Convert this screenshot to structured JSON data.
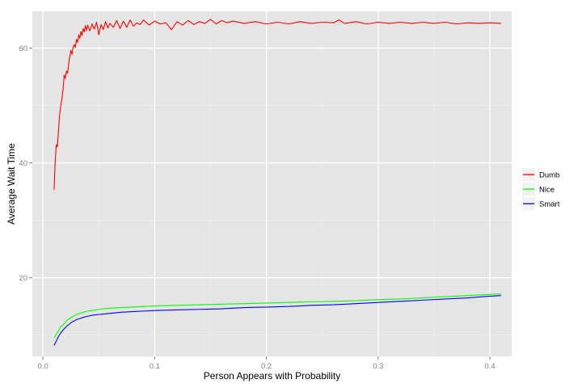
{
  "chart_data": {
    "type": "line",
    "title": "",
    "xlabel": "Person Appears with Probability",
    "ylabel": "Average Wait Time",
    "xlim": [
      -0.0095,
      0.4195
    ],
    "ylim": [
      6.3,
      66.4
    ],
    "xticks": [
      0.0,
      0.1,
      0.2,
      0.3,
      0.4
    ],
    "xtick_labels": [
      "0.0",
      "0.1",
      "0.2",
      "0.3",
      "0.4"
    ],
    "yticks": [
      20,
      40,
      60
    ],
    "ytick_labels": [
      "20",
      "40",
      "60"
    ],
    "grid": true,
    "background": "#e5e5e5",
    "legend_position": "right",
    "series": [
      {
        "name": "Dumb",
        "color": "#ff0000",
        "points": [
          [
            0.01,
            35.3
          ],
          [
            0.011,
            40.5
          ],
          [
            0.012,
            43.2
          ],
          [
            0.013,
            42.8
          ],
          [
            0.014,
            46.0
          ],
          [
            0.015,
            48.5
          ],
          [
            0.016,
            50.0
          ],
          [
            0.017,
            51.2
          ],
          [
            0.018,
            52.8
          ],
          [
            0.019,
            55.3
          ],
          [
            0.02,
            54.7
          ],
          [
            0.021,
            56.0
          ],
          [
            0.022,
            55.6
          ],
          [
            0.023,
            57.2
          ],
          [
            0.024,
            58.5
          ],
          [
            0.025,
            59.6
          ],
          [
            0.026,
            58.9
          ],
          [
            0.027,
            60.2
          ],
          [
            0.028,
            60.6
          ],
          [
            0.029,
            60.1
          ],
          [
            0.03,
            61.5
          ],
          [
            0.031,
            61.0
          ],
          [
            0.032,
            62.3
          ],
          [
            0.033,
            61.7
          ],
          [
            0.034,
            62.9
          ],
          [
            0.035,
            62.2
          ],
          [
            0.036,
            63.4
          ],
          [
            0.037,
            62.8
          ],
          [
            0.038,
            63.9
          ],
          [
            0.039,
            63.1
          ],
          [
            0.04,
            64.0
          ],
          [
            0.042,
            63.0
          ],
          [
            0.044,
            64.2
          ],
          [
            0.046,
            63.3
          ],
          [
            0.048,
            64.5
          ],
          [
            0.05,
            62.3
          ],
          [
            0.052,
            64.1
          ],
          [
            0.054,
            63.2
          ],
          [
            0.056,
            64.6
          ],
          [
            0.058,
            63.5
          ],
          [
            0.06,
            64.3
          ],
          [
            0.063,
            63.6
          ],
          [
            0.066,
            64.8
          ],
          [
            0.069,
            63.4
          ],
          [
            0.072,
            64.7
          ],
          [
            0.075,
            63.6
          ],
          [
            0.078,
            64.9
          ],
          [
            0.081,
            63.8
          ],
          [
            0.084,
            64.4
          ],
          [
            0.087,
            64.1
          ],
          [
            0.09,
            64.9
          ],
          [
            0.095,
            64.0
          ],
          [
            0.1,
            64.7
          ],
          [
            0.105,
            64.2
          ],
          [
            0.11,
            64.4
          ],
          [
            0.115,
            63.2
          ],
          [
            0.12,
            64.6
          ],
          [
            0.125,
            64.0
          ],
          [
            0.13,
            64.8
          ],
          [
            0.135,
            64.1
          ],
          [
            0.14,
            64.6
          ],
          [
            0.145,
            64.3
          ],
          [
            0.15,
            65.0
          ],
          [
            0.155,
            64.2
          ],
          [
            0.16,
            64.8
          ],
          [
            0.165,
            64.4
          ],
          [
            0.17,
            64.7
          ],
          [
            0.18,
            64.3
          ],
          [
            0.19,
            64.6
          ],
          [
            0.2,
            64.2
          ],
          [
            0.21,
            64.5
          ],
          [
            0.22,
            64.2
          ],
          [
            0.23,
            64.6
          ],
          [
            0.24,
            64.3
          ],
          [
            0.25,
            64.5
          ],
          [
            0.26,
            64.4
          ],
          [
            0.265,
            64.9
          ],
          [
            0.27,
            64.3
          ],
          [
            0.28,
            64.6
          ],
          [
            0.29,
            64.2
          ],
          [
            0.3,
            64.5
          ],
          [
            0.31,
            64.3
          ],
          [
            0.32,
            64.5
          ],
          [
            0.33,
            64.3
          ],
          [
            0.34,
            64.5
          ],
          [
            0.35,
            64.3
          ],
          [
            0.36,
            64.5
          ],
          [
            0.37,
            64.2
          ],
          [
            0.38,
            64.4
          ],
          [
            0.39,
            64.3
          ],
          [
            0.4,
            64.4
          ],
          [
            0.41,
            64.3
          ]
        ]
      },
      {
        "name": "Nice",
        "color": "#00ff00",
        "points": [
          [
            0.01,
            9.5
          ],
          [
            0.012,
            10.2
          ],
          [
            0.014,
            10.8
          ],
          [
            0.016,
            11.5
          ],
          [
            0.018,
            11.8
          ],
          [
            0.02,
            12.2
          ],
          [
            0.022,
            12.7
          ],
          [
            0.024,
            12.9
          ],
          [
            0.026,
            13.2
          ],
          [
            0.028,
            13.4
          ],
          [
            0.03,
            13.6
          ],
          [
            0.033,
            13.8
          ],
          [
            0.036,
            14.0
          ],
          [
            0.04,
            14.2
          ],
          [
            0.045,
            14.3
          ],
          [
            0.05,
            14.5
          ],
          [
            0.055,
            14.6
          ],
          [
            0.06,
            14.7
          ],
          [
            0.07,
            14.8
          ],
          [
            0.08,
            14.9
          ],
          [
            0.09,
            15.0
          ],
          [
            0.1,
            15.1
          ],
          [
            0.12,
            15.2
          ],
          [
            0.14,
            15.3
          ],
          [
            0.16,
            15.4
          ],
          [
            0.18,
            15.5
          ],
          [
            0.2,
            15.6
          ],
          [
            0.22,
            15.7
          ],
          [
            0.24,
            15.8
          ],
          [
            0.26,
            15.9
          ],
          [
            0.28,
            16.0
          ],
          [
            0.3,
            16.2
          ],
          [
            0.32,
            16.3
          ],
          [
            0.34,
            16.5
          ],
          [
            0.36,
            16.7
          ],
          [
            0.38,
            16.9
          ],
          [
            0.4,
            17.1
          ],
          [
            0.41,
            17.2
          ]
        ]
      },
      {
        "name": "Smart",
        "color": "#0000ff",
        "points": [
          [
            0.01,
            8.2
          ],
          [
            0.012,
            9.0
          ],
          [
            0.014,
            9.8
          ],
          [
            0.016,
            10.4
          ],
          [
            0.018,
            10.9
          ],
          [
            0.02,
            11.3
          ],
          [
            0.022,
            11.7
          ],
          [
            0.024,
            12.0
          ],
          [
            0.026,
            12.3
          ],
          [
            0.028,
            12.5
          ],
          [
            0.03,
            12.7
          ],
          [
            0.033,
            12.9
          ],
          [
            0.036,
            13.1
          ],
          [
            0.04,
            13.3
          ],
          [
            0.045,
            13.5
          ],
          [
            0.05,
            13.6
          ],
          [
            0.055,
            13.7
          ],
          [
            0.06,
            13.8
          ],
          [
            0.07,
            14.0
          ],
          [
            0.08,
            14.1
          ],
          [
            0.09,
            14.2
          ],
          [
            0.1,
            14.3
          ],
          [
            0.12,
            14.4
          ],
          [
            0.14,
            14.5
          ],
          [
            0.16,
            14.6
          ],
          [
            0.18,
            14.8
          ],
          [
            0.2,
            14.9
          ],
          [
            0.22,
            15.0
          ],
          [
            0.24,
            15.2
          ],
          [
            0.26,
            15.3
          ],
          [
            0.28,
            15.5
          ],
          [
            0.3,
            15.7
          ],
          [
            0.32,
            15.9
          ],
          [
            0.34,
            16.1
          ],
          [
            0.36,
            16.3
          ],
          [
            0.38,
            16.5
          ],
          [
            0.4,
            16.8
          ],
          [
            0.41,
            16.9
          ]
        ]
      }
    ]
  }
}
